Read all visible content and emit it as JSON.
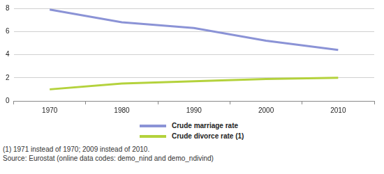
{
  "chart_data": {
    "type": "line",
    "categories": [
      "1970",
      "1980",
      "1990",
      "2000",
      "2010"
    ],
    "series": [
      {
        "name": "Crude marriage rate",
        "color": "#8b93d6",
        "values": [
          7.9,
          6.8,
          6.3,
          5.2,
          4.4
        ]
      },
      {
        "name": "Crude divorce rate (1)",
        "color": "#b4d23c",
        "values": [
          1.0,
          1.5,
          1.7,
          1.9,
          2.0
        ]
      }
    ],
    "ylim": [
      0,
      8
    ],
    "yticks": [
      0,
      2,
      4,
      6,
      8
    ],
    "grid": true,
    "legend": "bottom",
    "notes": [
      "(1) 1971 instead of 1970; 2009 instead of 2010.",
      "Source: Eurostat (online data codes: demo_nind and demo_ndivind)"
    ]
  }
}
